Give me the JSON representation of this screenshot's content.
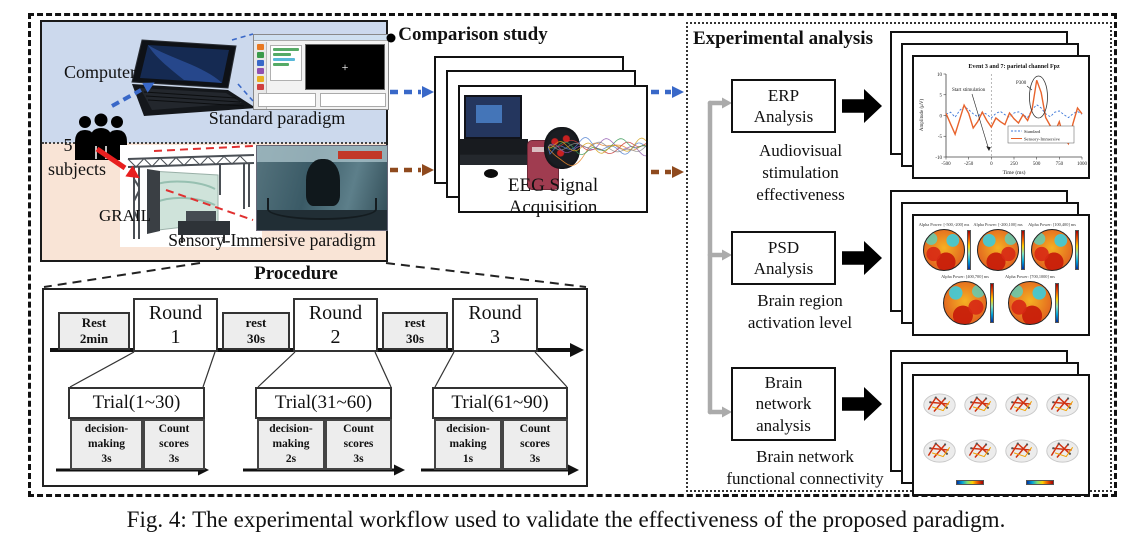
{
  "figure": {
    "caption": "Fig. 4: The experimental workflow used to validate the effectiveness of the proposed paradigm."
  },
  "setup": {
    "computer_label": "Computer",
    "standard_label": "Standard paradigm",
    "subjects_count": "5",
    "subjects_label": "subjects",
    "grail_label": "GRAIL",
    "immersive_label": "Sensory-Immersive paradigm",
    "stimulus_cross": "+"
  },
  "comparison": {
    "title": "Comparison study",
    "card_label": "EEG Signal Acquisition"
  },
  "analysis": {
    "title": "Experimental analysis",
    "erp_box": "ERP\nAnalysis",
    "erp_desc": "Audiovisual\nstimulation\neffectiveness",
    "psd_box": "PSD\nAnalysis",
    "psd_desc": "Brain region\nactivation level",
    "network_box": "Brain\nnetwork\nanalysis",
    "network_desc": "Brain network\nfunctional connectivity"
  },
  "procedure": {
    "title": "Procedure",
    "timeline": [
      {
        "label": "Rest\n2min",
        "type": "rest"
      },
      {
        "label": "Round\n1",
        "type": "round"
      },
      {
        "label": "rest\n30s",
        "type": "rest"
      },
      {
        "label": "Round\n2",
        "type": "round"
      },
      {
        "label": "rest\n30s",
        "type": "rest"
      },
      {
        "label": "Round\n3",
        "type": "round"
      }
    ],
    "trials": [
      {
        "title": "Trial(1~30)",
        "left": "decision-\nmaking\n3s",
        "right": "Count\nscores\n3s"
      },
      {
        "title": "Trial(31~60)",
        "left": "decision-\nmaking\n2s",
        "right": "Count\nscores\n3s"
      },
      {
        "title": "Trial(61~90)",
        "left": "decision-\nmaking\n1s",
        "right": "Count\nscores\n3s"
      }
    ]
  },
  "erp_chart": {
    "type": "line",
    "title": "Event 3 and 7: parietal channel Fpz",
    "xlabel": "Time (ms)",
    "ylabel": "Amplitude (μV)",
    "xlim": [
      -500,
      1000
    ],
    "ylim": [
      -10,
      10
    ],
    "xticks": [
      -500,
      -250,
      0,
      250,
      500,
      750,
      1000
    ],
    "yticks": [
      10,
      5,
      0,
      -5,
      -10
    ],
    "annotations": [
      "Start stimulation",
      "P300"
    ],
    "legend": [
      "Standard",
      "Sensory-Immersive"
    ],
    "series": [
      {
        "name": "Standard",
        "color": "#3b76d8",
        "dash": true,
        "x": [
          -500,
          -450,
          -400,
          -350,
          -300,
          -250,
          -200,
          -150,
          -100,
          -50,
          0,
          50,
          100,
          150,
          200,
          250,
          300,
          350,
          400,
          450,
          500,
          550,
          600,
          650,
          700,
          750,
          800,
          850,
          900,
          950,
          1000
        ],
        "y": [
          0.3,
          0.8,
          -0.4,
          1.2,
          2.2,
          1.4,
          0.4,
          -0.3,
          0.8,
          0.3,
          -0.6,
          0.5,
          1.0,
          0.2,
          -0.4,
          0.6,
          0.9,
          0.2,
          -0.5,
          1.4,
          2.6,
          1.8,
          0.4,
          -0.3,
          0.8,
          1.1,
          0.2,
          -0.5,
          0.4,
          1.0,
          0.3
        ]
      },
      {
        "name": "Sensory-Immersive",
        "color": "#e8632c",
        "dash": false,
        "x": [
          -500,
          -450,
          -400,
          -350,
          -300,
          -250,
          -200,
          -150,
          -100,
          -50,
          0,
          50,
          100,
          150,
          200,
          250,
          300,
          350,
          400,
          450,
          500,
          550,
          600,
          650,
          700,
          750,
          800,
          850,
          900,
          950,
          1000
        ],
        "y": [
          0.5,
          -2.0,
          -4.5,
          -1.0,
          2.5,
          0.5,
          -3.0,
          -1.5,
          0.8,
          -1.2,
          -2.8,
          -0.6,
          -1.5,
          -2.2,
          0.6,
          -0.8,
          -1.8,
          0.2,
          -1.2,
          1.5,
          8.5,
          5.5,
          -0.5,
          -2.5,
          -4.0,
          -1.5,
          -5.5,
          -6.8,
          -2.0,
          1.8,
          0.4
        ]
      }
    ]
  },
  "psd_maps": {
    "titles": [
      "Alpha Power: [-500,-200] ms",
      "Alpha Power: [-200,100] ms",
      "Alpha Power: [100,400] ms",
      "Alpha Power: [400,700] ms",
      "Alpha Power: [700,1000] ms"
    ]
  },
  "colors": {
    "standard_flow_blue": "#3968c8",
    "immersive_flow_brown": "#8f4a1e",
    "subject_arrow_red": "#e81f1f",
    "connector_gray": "#ababab",
    "panel_top_blue": "#ccd9ed",
    "panel_bottom_peach": "#f9e4d6",
    "erp_standard": "#3b76d8",
    "erp_immersive": "#e8632c",
    "eeg_traces": [
      "#e8872a",
      "#4f7fd0",
      "#c83838",
      "#3a9a58",
      "#9058b0",
      "#888888",
      "#d4a018"
    ]
  }
}
